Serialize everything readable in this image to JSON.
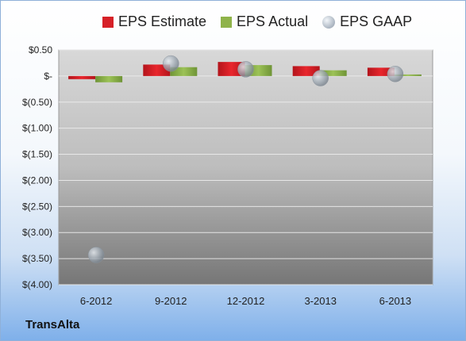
{
  "legend": {
    "estimate_label": "EPS Estimate",
    "actual_label": "EPS Actual",
    "gaap_label": "EPS GAAP"
  },
  "company": "TransAlta",
  "colors": {
    "estimate": "#d62027",
    "actual": "#8fb34a",
    "gaap": "#9aa4ae",
    "plot_top": "#d4d4d4",
    "plot_bottom": "#7a7a7a",
    "grid": "#e8e8e8"
  },
  "chart_data": {
    "type": "bar",
    "categories": [
      "6-2012",
      "9-2012",
      "12-2012",
      "3-2013",
      "6-2013"
    ],
    "series": [
      {
        "name": "EPS Estimate",
        "type": "bar",
        "values": [
          -0.06,
          0.22,
          0.27,
          0.19,
          0.16
        ]
      },
      {
        "name": "EPS Actual",
        "type": "bar",
        "values": [
          -0.12,
          0.17,
          0.21,
          0.11,
          0.03
        ]
      },
      {
        "name": "EPS GAAP",
        "type": "bubble",
        "values": [
          -3.43,
          0.24,
          0.13,
          -0.04,
          0.04
        ]
      }
    ],
    "ylim": [
      -4.0,
      0.5
    ],
    "yticks": [
      0.5,
      0,
      -0.5,
      -1.0,
      -1.5,
      -2.0,
      -2.5,
      -3.0,
      -3.5,
      -4.0
    ],
    "ytick_labels": [
      "$0.50",
      "$-",
      "$(0.50)",
      "$(1.00)",
      "$(1.50)",
      "$(2.00)",
      "$(2.50)",
      "$(3.00)",
      "$(3.50)",
      "$(4.00)"
    ],
    "grid": true,
    "legend_position": "top"
  }
}
